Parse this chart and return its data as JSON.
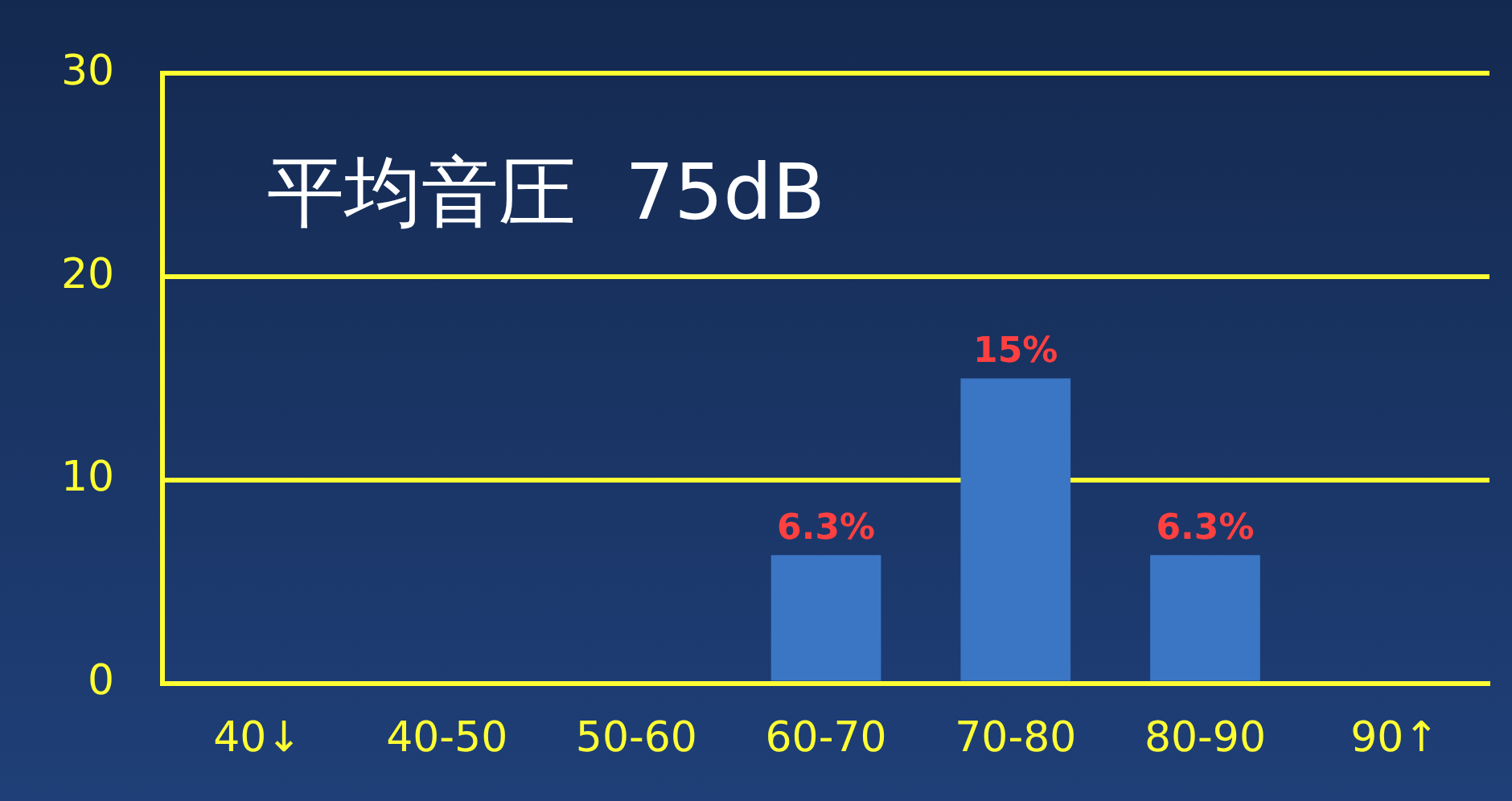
{
  "chart_data": {
    "type": "bar",
    "annotations": [
      "平均音圧  75dB"
    ],
    "categories": [
      "40↓",
      "40-50",
      "50-60",
      "60-70",
      "70-80",
      "80-90",
      "90↑"
    ],
    "values": [
      0,
      0,
      0,
      6.3,
      15,
      6.3,
      0
    ],
    "value_labels": [
      null,
      null,
      null,
      "6.3%",
      "15%",
      "6.3%",
      null
    ],
    "color": "#3b76c4",
    "ylim": [
      0,
      30
    ],
    "yticks": [
      0,
      10,
      20,
      30
    ],
    "grid": "y",
    "legend": false
  }
}
